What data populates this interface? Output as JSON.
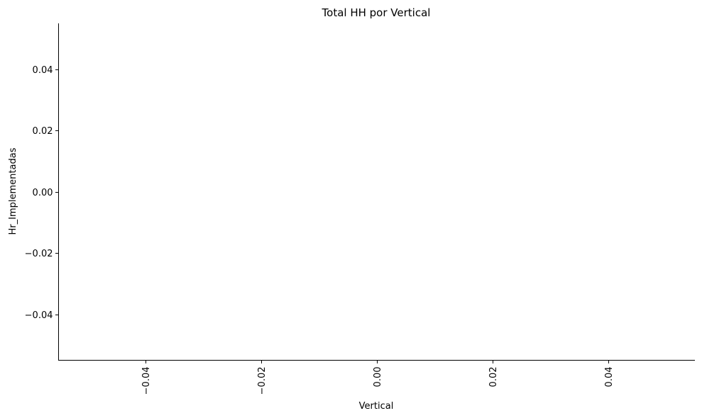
{
  "chart_data": {
    "type": "bar",
    "title": "Total HH por Vertical",
    "xlabel": "Vertical",
    "ylabel": "Hr_Implementadas",
    "categories": [],
    "values": [],
    "xlim": [
      -0.055,
      0.055
    ],
    "ylim": [
      -0.055,
      0.055
    ],
    "xticks": [
      -0.04,
      -0.02,
      0.0,
      0.02,
      0.04
    ],
    "xtick_labels": [
      "−0.04",
      "−0.02",
      "0.00",
      "0.02",
      "0.04"
    ],
    "yticks": [
      -0.04,
      -0.02,
      0.0,
      0.02,
      0.04
    ],
    "ytick_labels": [
      "−0.04",
      "−0.02",
      "0.00",
      "0.02",
      "0.04"
    ],
    "xtick_rotation": 90,
    "grid": false,
    "spines": [
      "left",
      "bottom"
    ],
    "legend": false
  }
}
